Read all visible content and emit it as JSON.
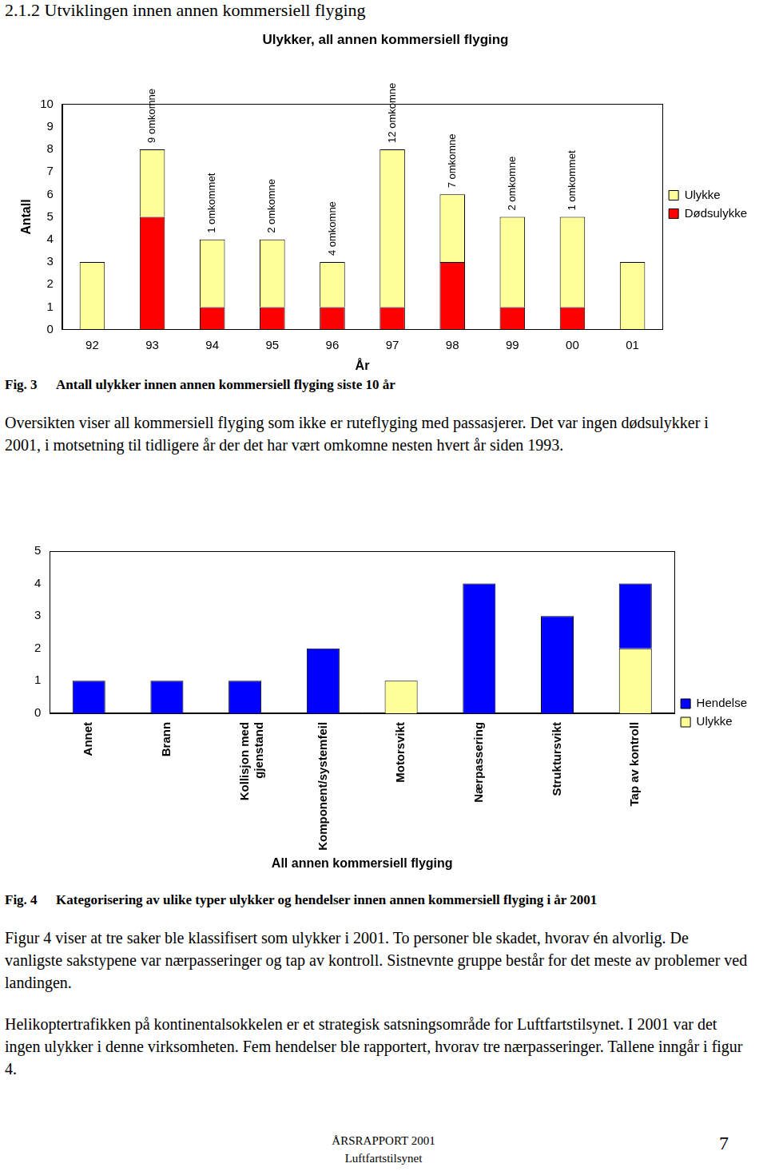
{
  "heading": "2.1.2 Utviklingen innen annen kommersiell flyging",
  "chart_data": [
    {
      "type": "bar",
      "title": "Ulykker, all annen kommersiell flyging",
      "x_label": "År",
      "y_label": "Antall",
      "categories": [
        "92",
        "93",
        "94",
        "95",
        "96",
        "97",
        "98",
        "99",
        "00",
        "01"
      ],
      "series": [
        {
          "name": "Ulykke",
          "color": "#ffff99",
          "values": [
            3,
            3,
            3,
            3,
            2,
            7,
            3,
            4,
            4,
            3
          ]
        },
        {
          "name": "Dødsulykke",
          "color": "#ff0000",
          "values": [
            0,
            5,
            1,
            1,
            1,
            1,
            3,
            1,
            1,
            0
          ]
        }
      ],
      "annotations": [
        null,
        "9 omkomne",
        "1 omkommet",
        "2 omkomne",
        "4 omkomne",
        "12 omkomne",
        "7 omkomne",
        "2 omkomne",
        "1 omkommet",
        null
      ],
      "stacked": true,
      "ylim": [
        0,
        10
      ],
      "yticks": [
        0,
        1,
        2,
        3,
        4,
        5,
        6,
        7,
        8,
        9,
        10
      ],
      "grid": false,
      "legend": "right"
    },
    {
      "type": "bar",
      "x_label": "All annen kommersiell flyging",
      "categories": [
        "Annet",
        "Brann",
        "Kollisjon med gjenstand",
        "Komponent/systemfeil",
        "Motorsvikt",
        "Nærpassering",
        "Struktursvikt",
        "Tap av kontroll"
      ],
      "series": [
        {
          "name": "Hendelse",
          "color": "#0000ff",
          "values": [
            1,
            1,
            1,
            2,
            0,
            4,
            3,
            2
          ]
        },
        {
          "name": "Ulykke",
          "color": "#ffff99",
          "values": [
            0,
            0,
            0,
            0,
            1,
            0,
            0,
            2
          ]
        }
      ],
      "stacked": true,
      "ylim": [
        0,
        5
      ],
      "yticks": [
        0,
        1,
        2,
        3,
        4,
        5
      ],
      "grid": false,
      "legend": "right"
    }
  ],
  "figures": [
    {
      "label": "Fig. 3",
      "caption": "Antall ulykker innen annen kommersiell flyging siste 10 år",
      "paragraphs": [
        "Oversikten viser all kommersiell flyging som ikke er ruteflyging med passasjerer. Det var ingen dødsulykker i 2001, i motsetning til tidligere år der det har vært omkomne nesten hvert år siden 1993."
      ]
    },
    {
      "label": "Fig. 4",
      "caption": "Kategorisering av ulike typer ulykker og hendelser innen annen kommersiell flyging i år 2001",
      "paragraphs": [
        "Figur 4 viser at tre saker ble klassifisert som ulykker i 2001. To personer ble skadet, hvorav én alvorlig. De vanligste sakstypene var nærpasseringer og tap av kontroll. Sistnevnte gruppe består for det meste av problemer ved landingen.",
        "Helikoptertrafikken på kontinentalsokkelen er et strategisk satsningsområde for Luftfartstilsynet. I 2001 var det ingen ulykker i denne virksomheten. Fem hendelser ble rapportert, hvorav tre nærpasseringer. Tallene inngår i figur 4."
      ]
    }
  ],
  "footer": {
    "report": "ÅRSRAPPORT 2001",
    "organisation": "Luftfartstilsynet",
    "page": "7"
  }
}
